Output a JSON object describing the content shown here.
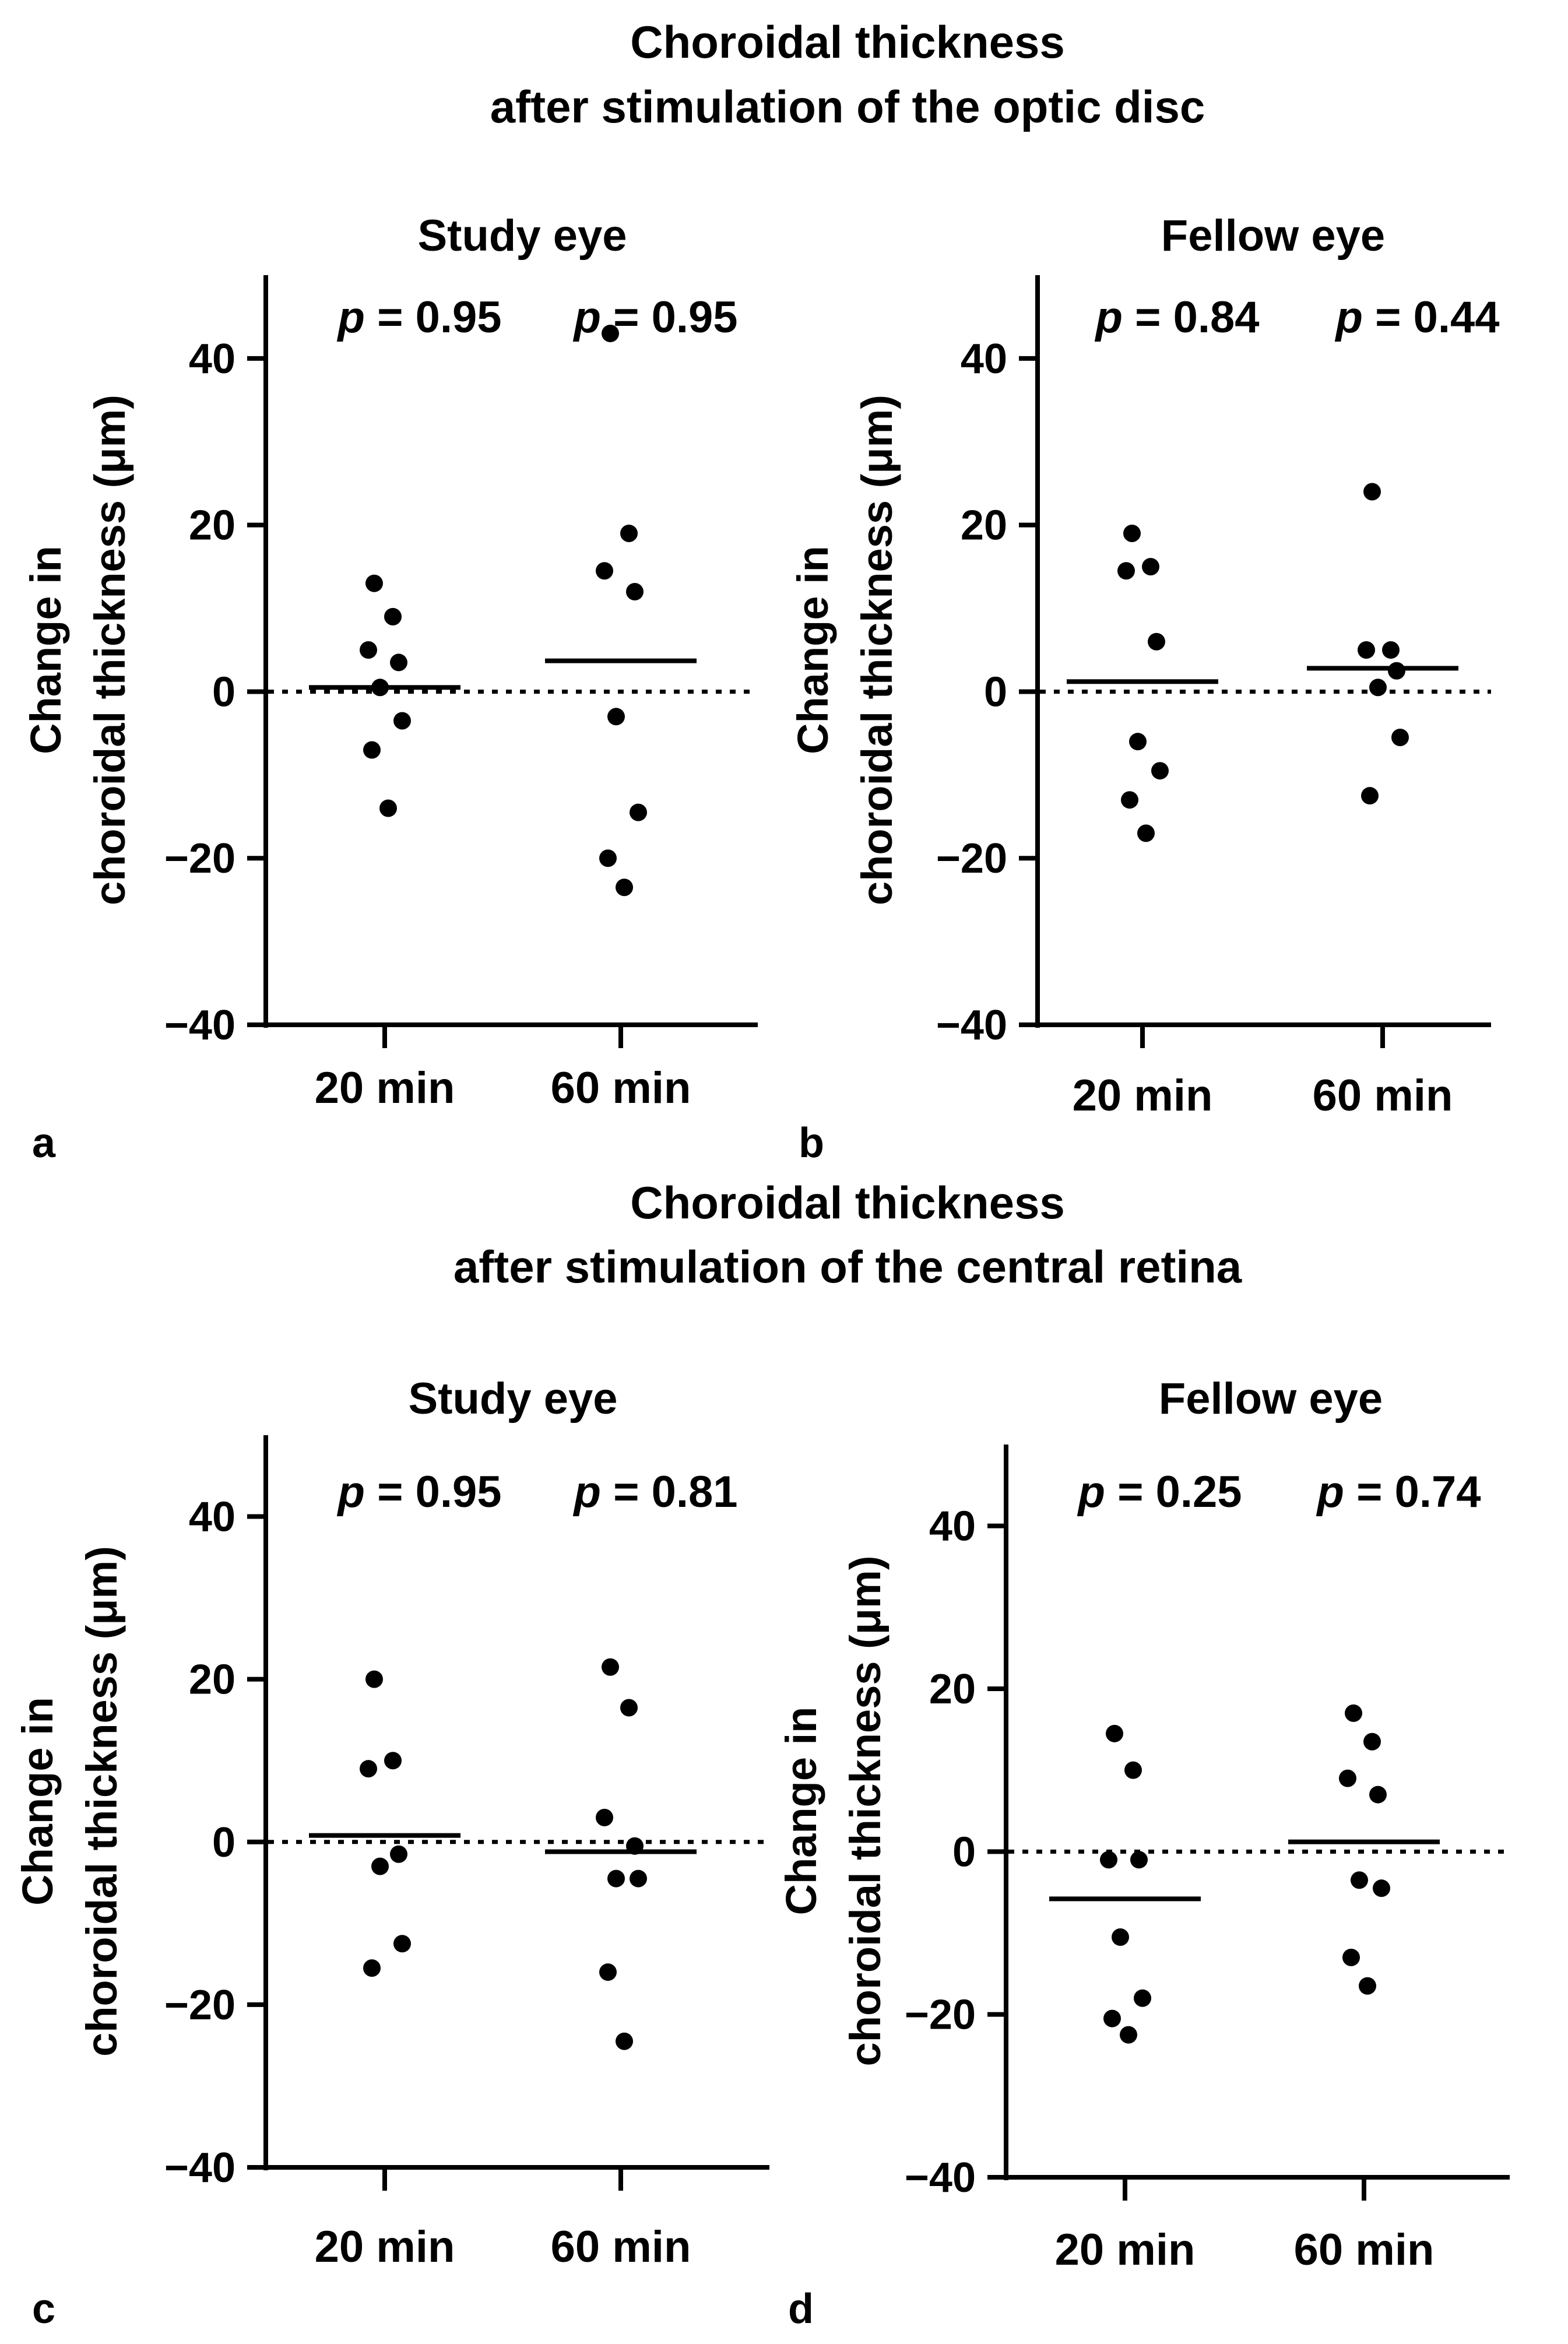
{
  "figure": {
    "sections": [
      {
        "title_line1": "Choroidal thickness",
        "title_line2": "after stimulation of the optic disc"
      },
      {
        "title_line1": "Choroidal thickness",
        "title_line2": "after stimulation of the central retina"
      }
    ]
  },
  "chart_data": [
    {
      "type": "scatter",
      "panel_label": "a",
      "title": "Study eye",
      "ylabel_line1": "Change in",
      "ylabel_line2": "choroidal thickness (μm)",
      "ylim": [
        -40,
        50
      ],
      "yticks": [
        -40,
        -20,
        0,
        20,
        40
      ],
      "ytick_labels": [
        "−40",
        "−20",
        "0",
        "20",
        "40"
      ],
      "categories": [
        "20 min",
        "60 min"
      ],
      "p_labels": [
        "0.95",
        "0.95"
      ],
      "p_prefix": "p",
      "p_eq": " = ",
      "points": [
        [
          13,
          9,
          5,
          3.5,
          0.5,
          -3.5,
          -7,
          -14
        ],
        [
          43,
          19,
          14.5,
          12,
          -3,
          -14.5,
          -20,
          -23.5
        ]
      ],
      "means": [
        0.5,
        3.7
      ]
    },
    {
      "type": "scatter",
      "panel_label": "b",
      "title": "Fellow eye",
      "ylabel_line1": "Change in",
      "ylabel_line2": "choroidal thickness (μm)",
      "ylim": [
        -40,
        50
      ],
      "yticks": [
        -40,
        -20,
        0,
        20,
        40
      ],
      "ytick_labels": [
        "−40",
        "−20",
        "0",
        "20",
        "40"
      ],
      "categories": [
        "20 min",
        "60 min"
      ],
      "p_labels": [
        "0.84",
        "0.44"
      ],
      "p_prefix": "p",
      "p_eq": " = ",
      "points": [
        [
          19,
          15,
          14.5,
          6,
          -6,
          -9.5,
          -13,
          -17
        ],
        [
          24,
          5,
          5,
          2.5,
          0.5,
          -5.5,
          -12.5
        ]
      ],
      "means": [
        1.2,
        2.8
      ]
    },
    {
      "type": "scatter",
      "panel_label": "c",
      "title": "Study eye",
      "ylabel_line1": "Change in",
      "ylabel_line2": "choroidal thickness (μm)",
      "ylim": [
        -40,
        50
      ],
      "yticks": [
        -40,
        -20,
        0,
        20,
        40
      ],
      "ytick_labels": [
        "−40",
        "−20",
        "0",
        "20",
        "40"
      ],
      "categories": [
        "20 min",
        "60 min"
      ],
      "p_labels": [
        "0.95",
        "0.81"
      ],
      "p_prefix": "p",
      "p_eq": " = ",
      "points": [
        [
          20,
          10,
          9,
          -1.5,
          -3,
          -12.5,
          -15.5
        ],
        [
          21.5,
          16.5,
          3,
          -0.5,
          -4.5,
          -4.5,
          -16,
          -24.5
        ]
      ],
      "means": [
        0.8,
        -1.2
      ]
    },
    {
      "type": "scatter",
      "panel_label": "d",
      "title": "Fellow eye",
      "ylabel_line1": "Change in",
      "ylabel_line2": "choroidal thickness (μm)",
      "ylim": [
        -40,
        50
      ],
      "yticks": [
        -40,
        -20,
        0,
        20,
        40
      ],
      "ytick_labels": [
        "−40",
        "−20",
        "0",
        "20",
        "40"
      ],
      "categories": [
        "20 min",
        "60 min"
      ],
      "p_labels": [
        "0.25",
        "0.74"
      ],
      "p_prefix": "p",
      "p_eq": " = ",
      "points": [
        [
          14.5,
          10,
          -1,
          -1,
          -10.5,
          -18,
          -20.5,
          -22.5
        ],
        [
          17,
          13.5,
          9,
          7,
          -3.5,
          -4.5,
          -13,
          -16.5
        ]
      ],
      "means": [
        -5.8,
        1.2
      ]
    }
  ]
}
